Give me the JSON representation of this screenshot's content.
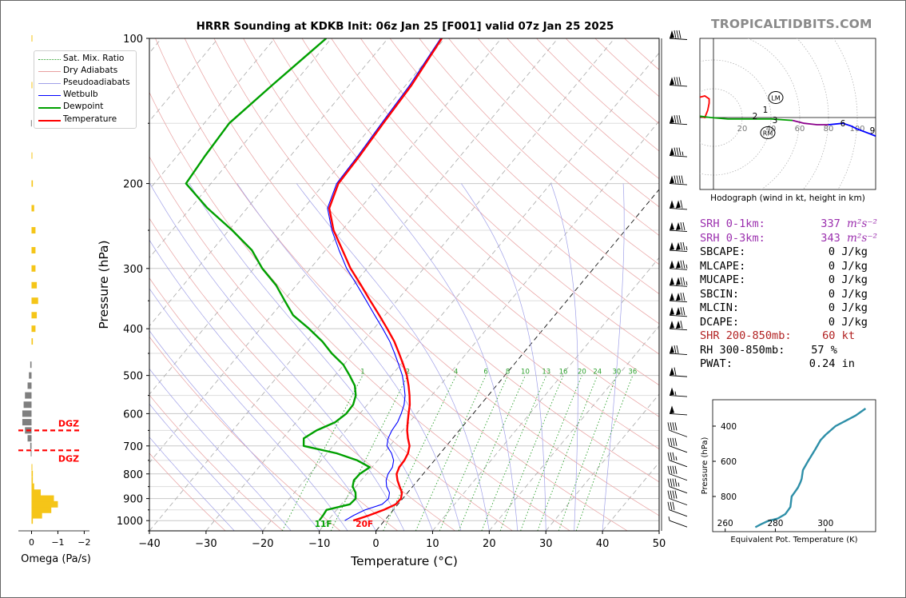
{
  "brand": "TROPICALTIDBITS.COM",
  "title": "HRRR Sounding at KDKB Init: 06z Jan 25 [F001] valid 07z Jan 25 2025",
  "legend": [
    {
      "label": "Sat. Mix. Ratio",
      "color": "#2ca02c",
      "style": "dotted"
    },
    {
      "label": "Dry Adiabats",
      "color": "#e8a0a0",
      "style": "solid"
    },
    {
      "label": "Pseudoadiabats",
      "color": "#a0a0e8",
      "style": "solid"
    },
    {
      "label": "Wetbulb",
      "color": "#0000ff",
      "style": "solid"
    },
    {
      "label": "Dewpoint",
      "color": "#00a000",
      "style": "solid"
    },
    {
      "label": "Temperature",
      "color": "#ff0000",
      "style": "solid"
    }
  ],
  "skewt": {
    "xlabel": "Temperature (°C)",
    "ylabel": "Pressure (hPa)",
    "xlim": [
      -40,
      50
    ],
    "ylim": [
      1050,
      100
    ],
    "xticks": [
      "−40",
      "−30",
      "−20",
      "−10",
      "0",
      "10",
      "20",
      "30",
      "40",
      "50"
    ],
    "yticks": [
      "100",
      "200",
      "300",
      "400",
      "500",
      "600",
      "700",
      "800",
      "900",
      "1000"
    ],
    "mixing_ratio_labels": [
      "1",
      "2",
      "4",
      "6",
      "8",
      "10",
      "13",
      "16",
      "20",
      "24",
      "30",
      "36"
    ],
    "surface_dewpoint_label": "11F",
    "surface_temperature_label": "20F"
  },
  "chart_data": [
    {
      "type": "line",
      "title": "HRRR Sounding at KDKB Init: 06z Jan 25 [F001] valid 07z Jan 25 2025",
      "xlabel": "Temperature (°C)",
      "ylabel": "Pressure (hPa)",
      "xlim": [
        -40,
        50
      ],
      "ylim": [
        1050,
        100
      ],
      "y_scale": "log",
      "series": [
        {
          "name": "Temperature",
          "color": "#ff0000",
          "p": [
            1000,
            975,
            950,
            925,
            900,
            875,
            850,
            825,
            800,
            775,
            750,
            725,
            700,
            675,
            650,
            625,
            600,
            575,
            550,
            525,
            500,
            475,
            450,
            425,
            400,
            375,
            350,
            325,
            300,
            275,
            250,
            225,
            200,
            175,
            150,
            125,
            100
          ],
          "t": [
            -5.5,
            -3.5,
            -1.7,
            -0.4,
            -0.3,
            -1.0,
            -2.3,
            -3.6,
            -4.7,
            -5.2,
            -5.3,
            -5.7,
            -6.5,
            -7.9,
            -9.2,
            -10.3,
            -11.4,
            -12.5,
            -13.9,
            -15.5,
            -17.3,
            -19.5,
            -21.9,
            -24.5,
            -27.6,
            -31.0,
            -34.7,
            -38.6,
            -42.9,
            -47.0,
            -51.5,
            -55.5,
            -57.5,
            -57.8,
            -58.4,
            -59.0,
            -60.5
          ]
        },
        {
          "name": "Dewpoint",
          "color": "#00a000",
          "p": [
            1000,
            975,
            950,
            925,
            900,
            875,
            850,
            825,
            800,
            775,
            750,
            725,
            700,
            675,
            650,
            625,
            600,
            575,
            550,
            525,
            500,
            475,
            450,
            425,
            400,
            375,
            350,
            325,
            300,
            275,
            250,
            225,
            200,
            175,
            150,
            125,
            100
          ],
          "t": [
            -11.5,
            -11.6,
            -11.8,
            -8.5,
            -8.3,
            -9.2,
            -10.6,
            -11.3,
            -11.2,
            -10.4,
            -13.6,
            -18.3,
            -25.2,
            -26.3,
            -25.2,
            -23.1,
            -22.4,
            -22.5,
            -23.4,
            -25.0,
            -27.4,
            -30.1,
            -33.8,
            -37.2,
            -41.4,
            -46.2,
            -49.8,
            -53.6,
            -58.5,
            -63.0,
            -69.4,
            -77.0,
            -84.4,
            -85.1,
            -85.6,
            -83.6,
            -80.9
          ]
        },
        {
          "name": "Wetbulb",
          "color": "#0000ff",
          "p": [
            1000,
            975,
            950,
            925,
            900,
            875,
            850,
            825,
            800,
            775,
            750,
            725,
            700,
            675,
            650,
            625,
            600,
            575,
            550,
            525,
            500,
            475,
            450,
            425,
            400,
            375,
            350,
            325,
            300,
            275,
            250,
            225,
            200,
            175,
            150,
            125,
            100
          ],
          "t": [
            -7.0,
            -6.2,
            -5.0,
            -2.8,
            -2.5,
            -3.2,
            -4.6,
            -5.6,
            -6.2,
            -6.4,
            -7.2,
            -8.6,
            -10.5,
            -11.4,
            -11.9,
            -12.1,
            -12.7,
            -13.5,
            -14.7,
            -16.3,
            -18.1,
            -20.3,
            -22.7,
            -25.3,
            -28.4,
            -31.8,
            -35.4,
            -39.3,
            -43.6,
            -47.6,
            -51.8,
            -55.8,
            -57.8,
            -58.1,
            -58.7,
            -59.3,
            -60.7
          ]
        }
      ],
      "mixing_ratio_labels": [
        "1",
        "2",
        "4",
        "6",
        "8",
        "10",
        "13",
        "16",
        "20",
        "24",
        "30",
        "36"
      ],
      "wind_barbs_kt": [
        {
          "p": 1000,
          "speed": 5
        },
        {
          "p": 950,
          "speed": 30
        },
        {
          "p": 900,
          "speed": 40
        },
        {
          "p": 850,
          "speed": 45
        },
        {
          "p": 800,
          "speed": 40
        },
        {
          "p": 750,
          "speed": 35
        },
        {
          "p": 700,
          "speed": 40
        },
        {
          "p": 650,
          "speed": 40
        },
        {
          "p": 600,
          "speed": 50
        },
        {
          "p": 550,
          "speed": 55
        },
        {
          "p": 500,
          "speed": 60
        },
        {
          "p": 450,
          "speed": 70
        },
        {
          "p": 400,
          "speed": 110
        },
        {
          "p": 375,
          "speed": 120
        },
        {
          "p": 350,
          "speed": 120
        },
        {
          "p": 325,
          "speed": 125
        },
        {
          "p": 300,
          "speed": 125
        },
        {
          "p": 275,
          "speed": 125
        },
        {
          "p": 250,
          "speed": 120
        },
        {
          "p": 225,
          "speed": 110
        },
        {
          "p": 200,
          "speed": 90
        },
        {
          "p": 175,
          "speed": 85
        },
        {
          "p": 150,
          "speed": 80
        },
        {
          "p": 125,
          "speed": 80
        },
        {
          "p": 100,
          "speed": 80
        }
      ]
    },
    {
      "type": "bar",
      "xlabel": "Omega (Pa/s)",
      "xlim": [
        0.5,
        -2.2
      ],
      "xticks": [
        "0",
        "−1",
        "−2"
      ],
      "dgz_label": "DGZ",
      "dgz_pressures": [
        650,
        715
      ],
      "p": [
        1000,
        975,
        950,
        925,
        900,
        875,
        850,
        825,
        800,
        775,
        750,
        725,
        700,
        675,
        650,
        625,
        600,
        575,
        550,
        525,
        500,
        475,
        450,
        425,
        400,
        375,
        350,
        325,
        300,
        275,
        250,
        225,
        200,
        175,
        150,
        125,
        100
      ],
      "values": [
        -0.05,
        -0.4,
        -0.75,
        -1.0,
        -0.85,
        -0.35,
        -0.1,
        -0.05,
        -0.05,
        -0.02,
        0.0,
        0.03,
        0.05,
        0.15,
        0.25,
        0.35,
        0.35,
        0.3,
        0.25,
        0.15,
        0.1,
        0.05,
        0.0,
        -0.05,
        -0.15,
        -0.2,
        -0.25,
        -0.2,
        -0.15,
        -0.15,
        -0.15,
        -0.1,
        -0.05,
        -0.02,
        0.02,
        -0.02,
        -0.02
      ]
    },
    {
      "type": "line",
      "title": "Hodograph (wind in kt, height in km)",
      "rings": [
        "20",
        "40",
        "60",
        "80",
        "100"
      ],
      "heights_km": [
        "1",
        "2",
        "3",
        "6",
        "9"
      ],
      "markers": [
        "LM",
        "RM"
      ],
      "u": [
        -26,
        -22,
        -18,
        -10,
        -6,
        -3,
        -3,
        -4,
        -6,
        -10,
        -2,
        10,
        20,
        40,
        55,
        63,
        72,
        80,
        90,
        96,
        100,
        108,
        113,
        118
      ],
      "v": [
        5,
        9,
        12,
        14,
        15,
        13,
        10,
        5,
        0,
        1,
        0,
        -1,
        -1,
        -1,
        -2,
        -4,
        -5,
        -5,
        -4,
        -6,
        -8,
        -11,
        -13,
        -15
      ],
      "ring_ticks": [
        20,
        40,
        60,
        80,
        100
      ]
    },
    {
      "type": "line",
      "xlabel": "Equivalent Pot. Temperature (K)",
      "ylabel": "Pressure (hPa)",
      "xlim": [
        255,
        320
      ],
      "ylim": [
        1000,
        250
      ],
      "xticks": [
        "260",
        "280",
        "300"
      ],
      "yticks": [
        "400",
        "600",
        "800"
      ],
      "x": [
        272,
        274,
        277,
        281,
        284,
        285,
        286,
        286.5,
        288,
        289,
        290,
        290.5,
        291,
        293,
        296,
        298,
        300,
        304,
        308,
        312,
        316
      ],
      "p": [
        975,
        960,
        940,
        925,
        900,
        880,
        860,
        800,
        770,
        750,
        720,
        700,
        650,
        600,
        530,
        480,
        450,
        400,
        370,
        340,
        300
      ]
    }
  ],
  "params": [
    {
      "label": "SRH 0-1km:",
      "value": "337",
      "unit": "m²s⁻²",
      "color": "purple"
    },
    {
      "label": "SRH 0-3km:",
      "value": "343",
      "unit": "m²s⁻²",
      "color": "purple"
    },
    {
      "label": "SBCAPE:",
      "value": "0 J/kg",
      "color": "black"
    },
    {
      "label": "MLCAPE:",
      "value": "0 J/kg",
      "color": "black"
    },
    {
      "label": "MUCAPE:",
      "value": "0 J/kg",
      "color": "black"
    },
    {
      "label": "SBCIN:",
      "value": "0 J/kg",
      "color": "black"
    },
    {
      "label": "MLCIN:",
      "value": "0 J/kg",
      "color": "black"
    },
    {
      "label": "DCAPE:",
      "value": "0 J/kg",
      "color": "black"
    },
    {
      "label": "SHR 200-850mb:",
      "value": "60 kt",
      "color": "darkred"
    },
    {
      "label": "RH 300-850mb:",
      "value": "57 %",
      "color": "black"
    },
    {
      "label": "PWAT:",
      "value": "0.24 in",
      "color": "black"
    }
  ]
}
